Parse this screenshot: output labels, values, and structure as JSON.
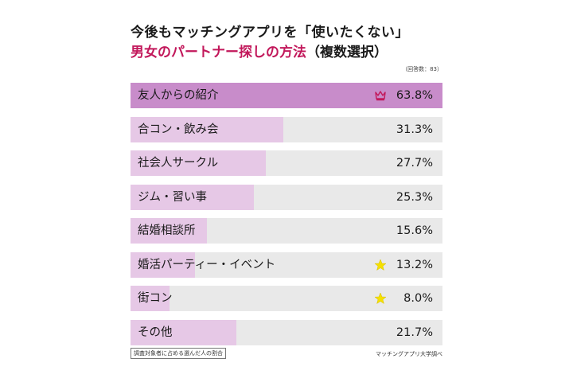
{
  "title": {
    "line1": "今後もマッチングアプリを「使いたくない」",
    "line2_accent": "男女のパートナー探しの方法",
    "line2_paren": "（複数選択）"
  },
  "sample_note": "（回答数：83）",
  "footnote": "調査対象者に占める選んだ人の割合",
  "source": "マッチングアプリ大学調べ",
  "colors": {
    "bar_top": "#c88cca",
    "bar": "#e6c8e6",
    "track": "#e9e9e9",
    "accent": "#c2185b",
    "star": "#f5e000"
  },
  "chart_data": {
    "type": "bar",
    "orientation": "horizontal",
    "unit": "%",
    "categories": [
      "友人からの紹介",
      "合コン・飲み会",
      "社会人サークル",
      "ジム・習い事",
      "結婚相談所",
      "婚活パーティー・イベント",
      "街コン",
      "その他"
    ],
    "values": [
      63.8,
      31.3,
      27.7,
      25.3,
      15.6,
      13.2,
      8.0,
      21.7
    ],
    "value_labels": [
      "63.8%",
      "31.3%",
      "27.7%",
      "25.3%",
      "15.6%",
      "13.2%",
      "8.0%",
      "21.7%"
    ],
    "icons": [
      "crown-icon",
      "",
      "",
      "",
      "",
      "star-icon",
      "star-icon",
      ""
    ],
    "xlim": [
      0,
      63.8
    ]
  }
}
